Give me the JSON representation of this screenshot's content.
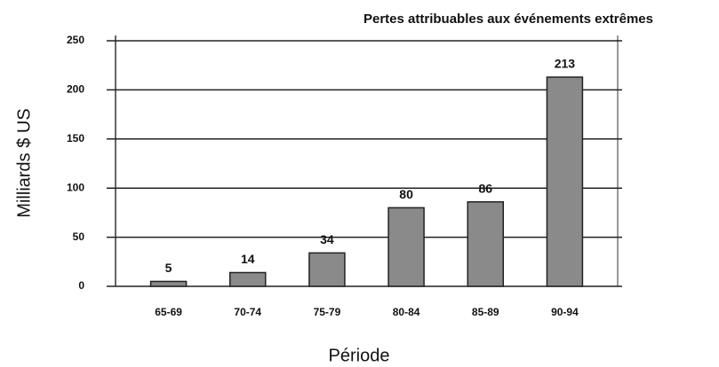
{
  "chart_data": {
    "type": "bar",
    "title": "Pertes attribuables aux événements extrêmes",
    "x_label": "Période",
    "y_label": "Milliards $ US",
    "categories": [
      "65-69",
      "70-74",
      "75-79",
      "80-84",
      "85-89",
      "90-94"
    ],
    "values": [
      5,
      14,
      34,
      80,
      86,
      213
    ],
    "color": "#8a8a8a",
    "ylim": [
      0,
      250
    ],
    "yticks": [
      0,
      50,
      100,
      150,
      200,
      250
    ],
    "grid": true
  }
}
